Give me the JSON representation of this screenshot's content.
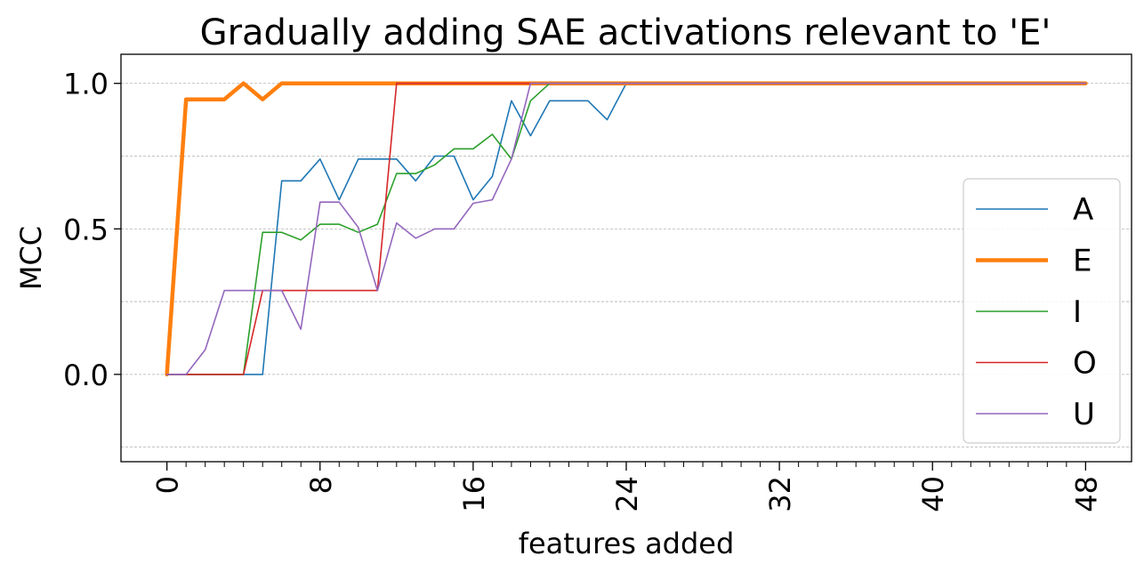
{
  "chart_data": {
    "type": "line",
    "title": "Gradually adding SAE activations relevant to 'E'",
    "xlabel": "features added",
    "ylabel": "MCC",
    "xlim": [
      -2.4,
      50.4
    ],
    "ylim": [
      -0.3,
      1.1
    ],
    "xticks": [
      0,
      8,
      16,
      24,
      32,
      40,
      48
    ],
    "xtick_labels": [
      "0",
      "8",
      "16",
      "24",
      "32",
      "40",
      "48"
    ],
    "yticks": [
      0.0,
      0.5,
      1.0
    ],
    "ytick_labels": [
      "0.0",
      "0.5",
      "1.0"
    ],
    "grid_y": [
      -0.25,
      0.0,
      0.25,
      0.5,
      0.75,
      1.0
    ],
    "grid": "horizontal dashed",
    "legend_position": "lower-right",
    "series": [
      {
        "name": "A",
        "color": "#1f77b4",
        "width": 1.6,
        "values": [
          0,
          0,
          0,
          0,
          0,
          0,
          0.665,
          0.665,
          0.74,
          0.6,
          0.74,
          0.74,
          0.74,
          0.665,
          0.75,
          0.75,
          0.6,
          0.68,
          0.94,
          0.82,
          0.94,
          0.94,
          0.94,
          0.875,
          1,
          1,
          1,
          1,
          1,
          1,
          1,
          1,
          1,
          1,
          1,
          1,
          1,
          1,
          1,
          1,
          1,
          1,
          1,
          1,
          1,
          1,
          1,
          1,
          1
        ]
      },
      {
        "name": "E",
        "color": "#ff7f0e",
        "width": 4.5,
        "values": [
          0,
          0.945,
          0.945,
          0.945,
          1,
          0.945,
          1,
          1,
          1,
          1,
          1,
          1,
          1,
          1,
          1,
          1,
          1,
          1,
          1,
          1,
          1,
          1,
          1,
          1,
          1,
          1,
          1,
          1,
          1,
          1,
          1,
          1,
          1,
          1,
          1,
          1,
          1,
          1,
          1,
          1,
          1,
          1,
          1,
          1,
          1,
          1,
          1,
          1,
          1
        ]
      },
      {
        "name": "I",
        "color": "#2ca02c",
        "width": 1.6,
        "values": [
          0,
          0,
          0,
          0,
          0,
          0.488,
          0.488,
          0.462,
          0.516,
          0.516,
          0.488,
          0.516,
          0.69,
          0.69,
          0.72,
          0.775,
          0.775,
          0.825,
          0.74,
          0.94,
          1,
          1,
          1,
          1,
          1,
          1,
          1,
          1,
          1,
          1,
          1,
          1,
          1,
          1,
          1,
          1,
          1,
          1,
          1,
          1,
          1,
          1,
          1,
          1,
          1,
          1,
          1,
          1,
          1
        ]
      },
      {
        "name": "O",
        "color": "#d62728",
        "width": 1.6,
        "values": [
          0,
          0,
          0,
          0,
          0,
          0.288,
          0.288,
          0.288,
          0.288,
          0.288,
          0.288,
          0.288,
          1,
          1,
          1,
          1,
          1,
          1,
          1,
          1,
          1,
          1,
          1,
          1,
          1,
          1,
          1,
          1,
          1,
          1,
          1,
          1,
          1,
          1,
          1,
          1,
          1,
          1,
          1,
          1,
          1,
          1,
          1,
          1,
          1,
          1,
          1,
          1,
          1
        ]
      },
      {
        "name": "U",
        "color": "#9467bd",
        "width": 1.6,
        "values": [
          0,
          0,
          0.085,
          0.288,
          0.288,
          0.288,
          0.288,
          0.155,
          0.592,
          0.592,
          0.505,
          0.288,
          0.52,
          0.468,
          0.5,
          0.5,
          0.588,
          0.6,
          0.74,
          1,
          1,
          1,
          1,
          1,
          1,
          1,
          1,
          1,
          1,
          1,
          1,
          1,
          1,
          1,
          1,
          1,
          1,
          1,
          1,
          1,
          1,
          1,
          1,
          1,
          1,
          1,
          1,
          1,
          1
        ]
      }
    ]
  }
}
